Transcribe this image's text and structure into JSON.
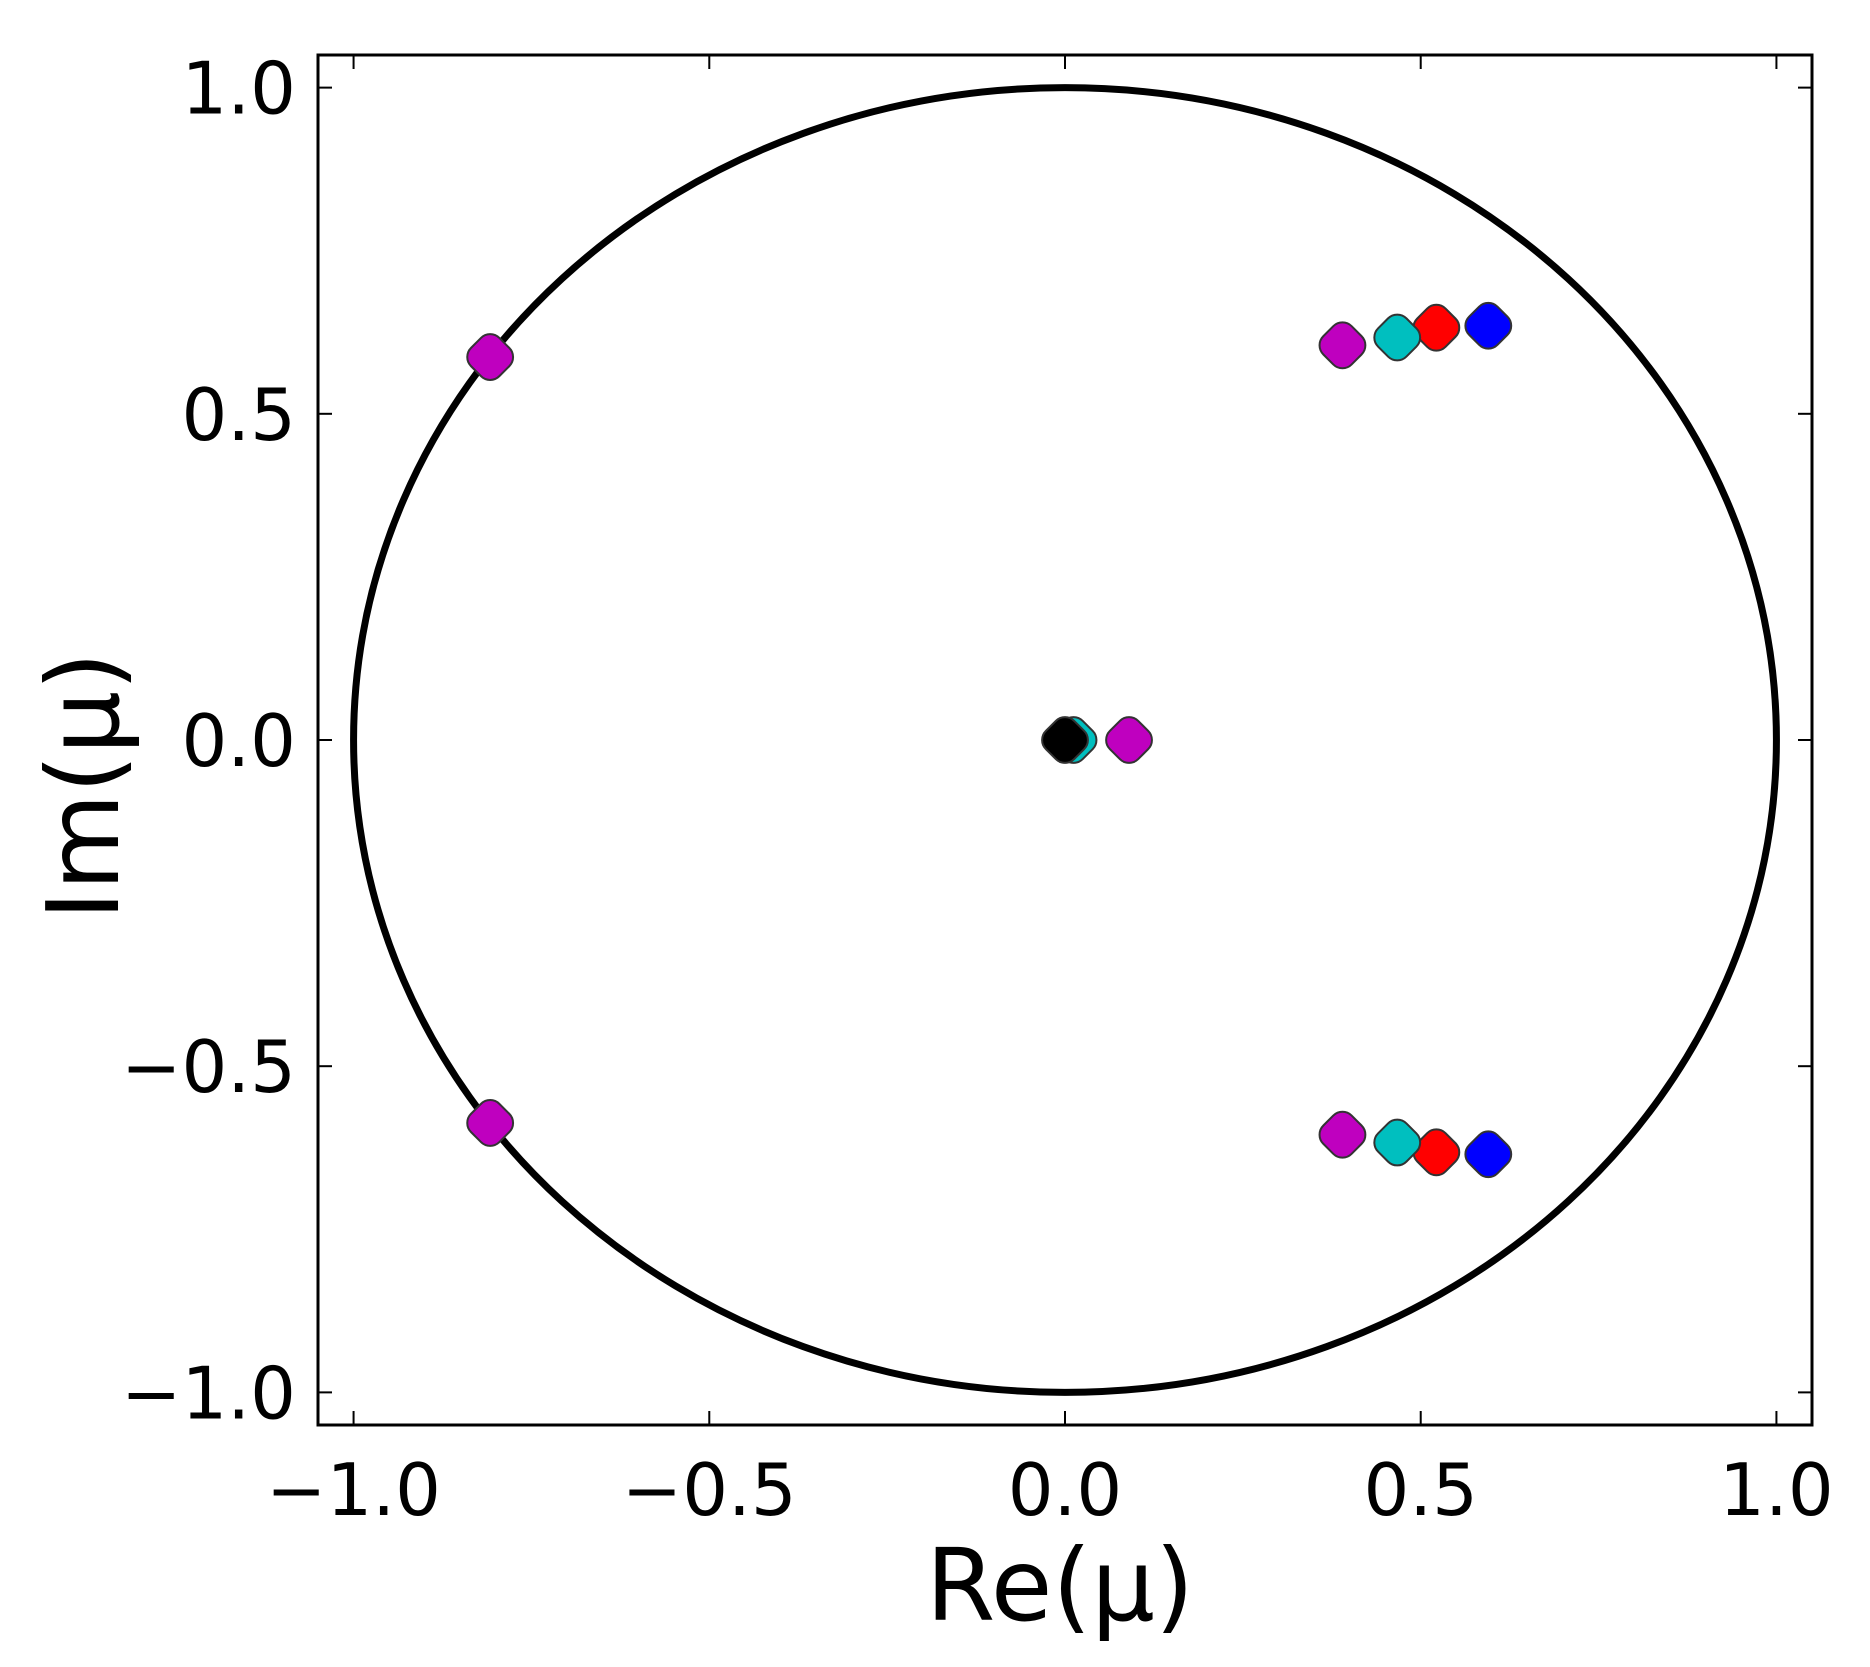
{
  "chart_data": {
    "type": "scatter",
    "title": "",
    "xlabel": "Re(μ)",
    "ylabel": "Im(μ)",
    "xlim": [
      -1.05,
      1.05
    ],
    "ylim": [
      -1.05,
      1.05
    ],
    "xticks": [
      -1.0,
      -0.5,
      0.0,
      0.5,
      1.0
    ],
    "yticks": [
      -1.0,
      -0.5,
      0.0,
      0.5,
      1.0
    ],
    "xtick_labels": [
      "−1.0",
      "−0.5",
      "0.0",
      "0.5",
      "1.0"
    ],
    "ytick_labels": [
      "−1.0",
      "−0.5",
      "0.0",
      "0.5",
      "1.0"
    ],
    "grid": false,
    "legend": "none",
    "reference_curve": {
      "type": "unit-circle",
      "center": [
        0,
        0
      ],
      "radius": 1.0,
      "color": "#000000"
    },
    "series": [
      {
        "color": "#0000ff",
        "points": [
          [
            0.595,
            0.635
          ],
          [
            0.595,
            -0.635
          ]
        ]
      },
      {
        "color": "#ff0000",
        "points": [
          [
            0.522,
            0.632
          ],
          [
            0.522,
            -0.632
          ]
        ]
      },
      {
        "color": "#00bfbf",
        "points": [
          [
            0.467,
            0.617
          ],
          [
            0.467,
            -0.617
          ],
          [
            0.012,
            0.0
          ]
        ]
      },
      {
        "color": "#bf00bf",
        "points": [
          [
            0.39,
            0.605
          ],
          [
            0.39,
            -0.605
          ],
          [
            0.09,
            0.0
          ],
          [
            -0.808,
            0.587
          ],
          [
            -0.808,
            -0.587
          ]
        ]
      },
      {
        "color": "#000000",
        "points": [
          [
            0.0,
            0.0
          ]
        ]
      }
    ]
  }
}
